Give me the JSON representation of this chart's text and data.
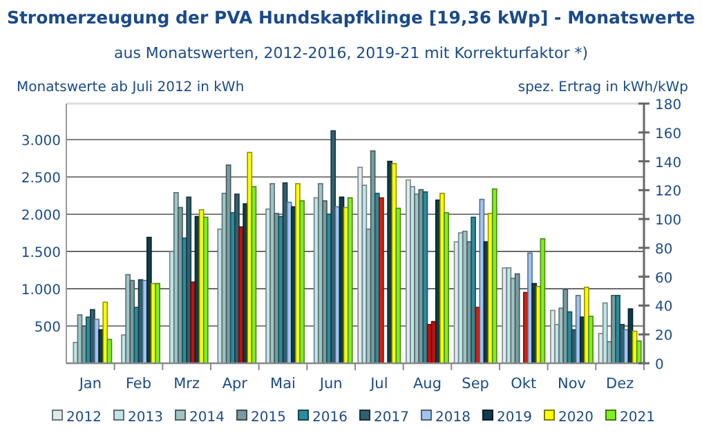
{
  "chart_data": {
    "type": "bar",
    "title": "Stromerzeugung der PVA Hundskapfklinge [19,36 kWp] - Monatswerte",
    "subtitle": "aus Monatswerten, 2012-2016, 2019-21 mit Korrekturfaktor *)",
    "ylabel": "Monatswerte ab Juli 2012 in kWh",
    "y2label": "spez. Ertrag in kWh/kWp",
    "categories": [
      "Jan",
      "Feb",
      "Mrz",
      "Apr",
      "Mai",
      "Jun",
      "Jul",
      "Aug",
      "Sep",
      "Okt",
      "Nov",
      "Dez"
    ],
    "series": [
      {
        "name": "2012",
        "color": "#dcecec",
        "values": [
          null,
          null,
          null,
          null,
          null,
          null,
          2630,
          2460,
          1630,
          1280,
          710,
          400
        ]
      },
      {
        "name": "2013",
        "color": "#c0e4e8",
        "values": [
          280,
          380,
          1500,
          1800,
          2070,
          2220,
          2390,
          2370,
          1750,
          1280,
          520,
          810
        ]
      },
      {
        "name": "2014",
        "color": "#a0c4c4",
        "values": [
          650,
          1190,
          2290,
          2280,
          2410,
          2410,
          1800,
          2270,
          1770,
          1140,
          740,
          290
        ]
      },
      {
        "name": "2015",
        "color": "#789ca0",
        "values": [
          500,
          1110,
          2090,
          2660,
          2010,
          2180,
          2850,
          2330,
          1630,
          1200,
          990,
          910
        ]
      },
      {
        "name": "2016",
        "color": "#2a8c9c",
        "values": [
          620,
          750,
          1680,
          2020,
          1970,
          2000,
          2280,
          2300,
          1960,
          null,
          690,
          910
        ]
      },
      {
        "name": "2017",
        "color": "#2e6070",
        "values": [
          720,
          1120,
          2230,
          2270,
          2420,
          3120,
          2220,
          520,
          750,
          950,
          450,
          520
        ],
        "colors": [
          "#2e6070",
          "#2e6070",
          "#2e6070",
          "#2e6070",
          "#2e6070",
          "#2e6070",
          "#d02010",
          "#c01010",
          "#d02010",
          "#d02010",
          "#2e6070",
          "#2e6070"
        ]
      },
      {
        "name": "2018",
        "color": "#a0c4f0",
        "values": [
          590,
          1110,
          1090,
          1830,
          2160,
          2100,
          null,
          560,
          2200,
          1480,
          910,
          450
        ],
        "colors": [
          "#a0c4f0",
          "#a0c4f0",
          "#c01010",
          "#c01010",
          "#a0c4f0",
          "#a0c4f0",
          null,
          "#c01010",
          "#a0c4f0",
          "#a0c4f0",
          "#a0c4f0",
          "#a0c4f0"
        ]
      },
      {
        "name": "2019",
        "color": "#103c4c",
        "values": [
          450,
          1690,
          1970,
          2140,
          2100,
          2230,
          2710,
          2190,
          1630,
          1070,
          620,
          730
        ]
      },
      {
        "name": "2020",
        "color": "#ffff00",
        "values": [
          820,
          1070,
          2060,
          2830,
          2410,
          2090,
          2680,
          2280,
          2010,
          1030,
          1020,
          430
        ]
      },
      {
        "name": "2021",
        "color": "#80f020",
        "values": [
          320,
          1070,
          1960,
          2370,
          2180,
          2220,
          2080,
          2020,
          2340,
          1670,
          630,
          300
        ]
      }
    ],
    "ylim": [
      0,
      3484.8
    ],
    "yticks": [
      {
        "value": 500,
        "label": "500"
      },
      {
        "value": 1000,
        "label": "1.000"
      },
      {
        "value": 1500,
        "label": "1.500"
      },
      {
        "value": 2000,
        "label": "2.000"
      },
      {
        "value": 2500,
        "label": "2.500"
      },
      {
        "value": 3000,
        "label": "3.000"
      }
    ],
    "y2lim": [
      0,
      180
    ],
    "y2ticks": [
      0,
      20,
      40,
      60,
      80,
      100,
      120,
      140,
      160,
      180
    ],
    "grid": "y",
    "legend": "bottom"
  }
}
